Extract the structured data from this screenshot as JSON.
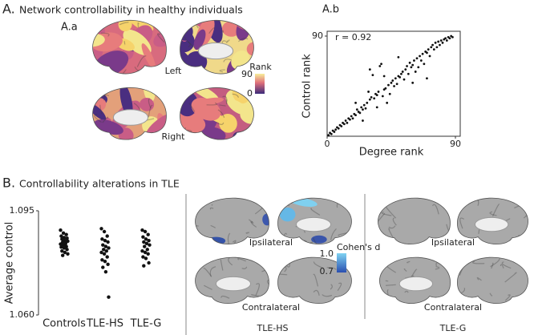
{
  "panel_a": {
    "letter": "A.",
    "title": "Network controllability in healthy individuals",
    "sub_a": "A.a",
    "left": "Left",
    "right": "Right",
    "colorbar": {
      "title": "Rank",
      "top": "90",
      "bottom": "0"
    }
  },
  "panel_b": {
    "letter": "B.",
    "title": "Controllability alterations in TLE",
    "ipsi_hs": "Ipsilateral",
    "contra_hs": "Contralateral",
    "group_hs": "TLE-HS",
    "ipsi_g": "Ipsilateral",
    "contra_g": "Contralateral",
    "group_g": "TLE-G",
    "colorbar": {
      "title": "Cohen's d",
      "top": "1.0",
      "bottom": "0.7"
    }
  },
  "chart_data": [
    {
      "type": "scatter",
      "title": "A.b",
      "annotation": "r = 0.92",
      "xlabel": "Degree rank",
      "ylabel": "Control rank",
      "color": "#111111",
      "xlim": [
        0,
        90
      ],
      "ylim": [
        0,
        90
      ],
      "xticks": [
        0,
        90
      ],
      "yticks": [
        90
      ],
      "x": [
        1,
        2,
        3,
        4,
        5,
        6,
        7,
        8,
        9,
        10,
        11,
        12,
        13,
        14,
        15,
        16,
        17,
        18,
        19,
        20,
        21,
        22,
        23,
        24,
        25,
        26,
        27,
        28,
        29,
        30,
        31,
        32,
        33,
        34,
        35,
        36,
        37,
        38,
        39,
        40,
        41,
        42,
        43,
        44,
        45,
        46,
        47,
        48,
        49,
        50,
        51,
        52,
        53,
        54,
        55,
        56,
        57,
        58,
        59,
        60,
        61,
        62,
        63,
        64,
        65,
        66,
        67,
        68,
        69,
        70,
        71,
        72,
        73,
        74,
        75,
        76,
        77,
        78,
        79,
        80,
        81,
        82,
        83,
        84,
        85,
        86,
        87,
        88,
        30,
        40,
        50,
        20,
        60,
        70,
        35,
        25
      ],
      "values": [
        1,
        3,
        2,
        5,
        4,
        6,
        8,
        7,
        10,
        9,
        12,
        11,
        14,
        12,
        16,
        15,
        18,
        16,
        20,
        19,
        24,
        22,
        21,
        26,
        24,
        28,
        25,
        30,
        40,
        33,
        35,
        55,
        34,
        38,
        37,
        40,
        63,
        65,
        36,
        42,
        43,
        30,
        46,
        38,
        48,
        50,
        45,
        52,
        47,
        54,
        53,
        56,
        58,
        51,
        60,
        63,
        56,
        66,
        62,
        64,
        68,
        58,
        70,
        62,
        72,
        68,
        74,
        65,
        76,
        75,
        78,
        72,
        80,
        82,
        78,
        84,
        80,
        85,
        82,
        86,
        84,
        87,
        88,
        86,
        89,
        88,
        90,
        89,
        60,
        54,
        71,
        30,
        48,
        52,
        26,
        14
      ]
    },
    {
      "type": "strip",
      "ylabel": "Average control",
      "color": "#111111",
      "categories": [
        "Controls",
        "TLE-HS",
        "TLE-G"
      ],
      "ylim": [
        1.06,
        1.095
      ],
      "yticks": [
        {
          "value": 1.06,
          "label": "1.060"
        },
        {
          "value": 1.095,
          "label": "1.095"
        }
      ],
      "values": [
        [
          1.0885,
          1.0875,
          1.087,
          1.0865,
          1.086,
          1.0858,
          1.0855,
          1.085,
          1.0848,
          1.0845,
          1.084,
          1.0838,
          1.0835,
          1.083,
          1.0828,
          1.0825,
          1.082,
          1.0815,
          1.081,
          1.0805,
          1.08
        ],
        [
          1.089,
          1.088,
          1.0865,
          1.0855,
          1.085,
          1.0845,
          1.0835,
          1.083,
          1.0825,
          1.082,
          1.0815,
          1.081,
          1.0805,
          1.0795,
          1.0785,
          1.078,
          1.077,
          1.076,
          1.0745,
          1.066
        ],
        [
          1.0885,
          1.088,
          1.087,
          1.0862,
          1.0855,
          1.085,
          1.0845,
          1.084,
          1.0835,
          1.083,
          1.082,
          1.0815,
          1.081,
          1.0805,
          1.0795,
          1.079,
          1.0775,
          1.0765
        ]
      ]
    }
  ]
}
